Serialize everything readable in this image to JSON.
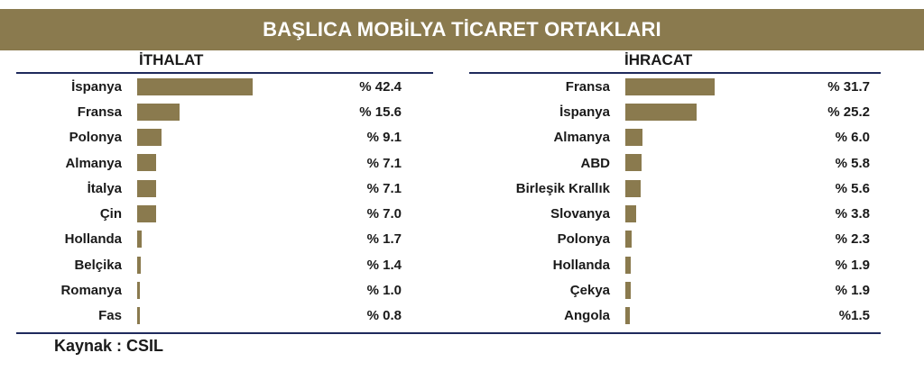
{
  "chart_data": [
    {
      "type": "bar",
      "title": "İTHALAT",
      "categories": [
        "İspanya",
        "Fransa",
        "Polonya",
        "Almanya",
        "İtalya",
        "Çin",
        "Hollanda",
        "Belçika",
        "Romanya",
        "Fas"
      ],
      "values": [
        42.4,
        15.6,
        9.1,
        7.1,
        7.1,
        7.0,
        1.7,
        1.4,
        1.0,
        0.8
      ],
      "value_labels": [
        "% 42.4",
        "% 15.6",
        "% 9.1",
        "% 7.1",
        "% 7.1",
        "% 7.0",
        "% 1.7",
        "% 1.4",
        "% 1.0",
        "% 0.8"
      ],
      "orientation": "horizontal",
      "bar_color": "#8a7a4e",
      "grid": false
    },
    {
      "type": "bar",
      "title": "İHRACAT",
      "categories": [
        "Fransa",
        "İspanya",
        "Almanya",
        "ABD",
        "Birleşik Krallık",
        "Slovanya",
        "Polonya",
        "Hollanda",
        "Çekya",
        "Angola"
      ],
      "values": [
        31.7,
        25.2,
        6.0,
        5.8,
        5.6,
        3.8,
        2.3,
        1.9,
        1.9,
        1.5
      ],
      "value_labels": [
        "% 31.7",
        "% 25.2",
        "% 6.0",
        "% 5.8",
        "% 5.6",
        "% 3.8",
        "% 2.3",
        "% 1.9",
        "% 1.9",
        "%1.5"
      ],
      "orientation": "horizontal",
      "bar_color": "#8a7a4e",
      "grid": false
    }
  ],
  "header": {
    "title": "BAŞLICA MOBİLYA TİCARET ORTAKLARI"
  },
  "footer": {
    "source": "Kaynak : CSIL"
  },
  "colors": {
    "banner": "#8a7a4e",
    "bar": "#8a7a4e",
    "rule": "#1f2a5c"
  }
}
